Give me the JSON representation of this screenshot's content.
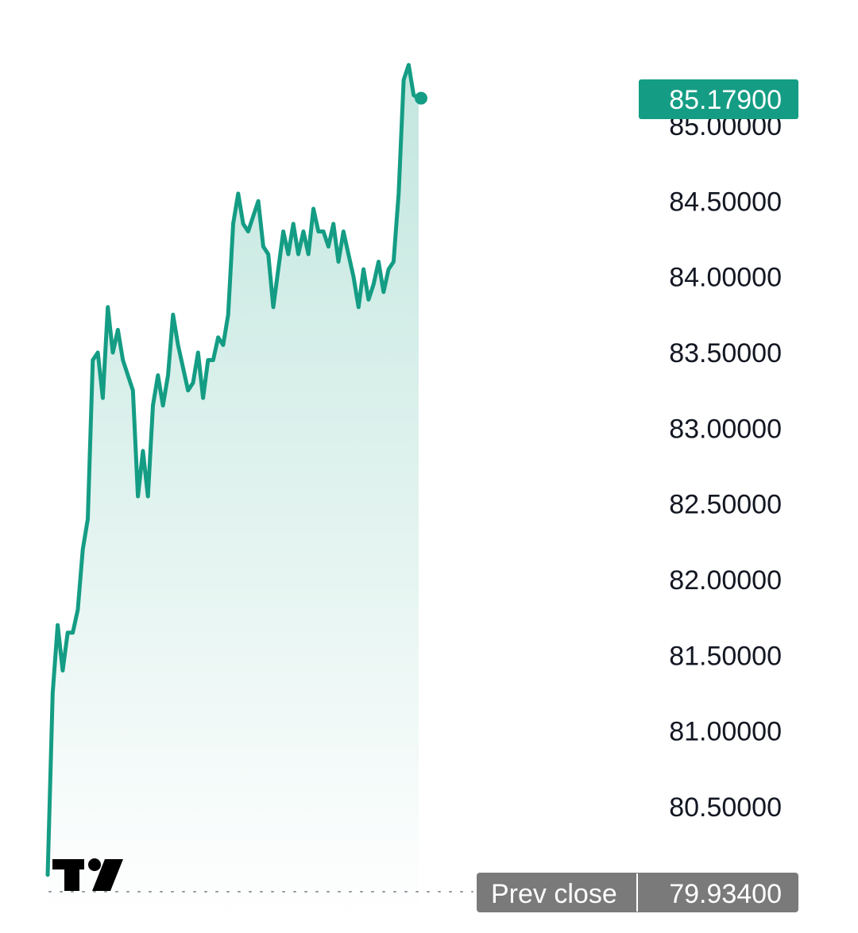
{
  "chart_data": {
    "type": "area",
    "ylim": [
      80.05,
      85.54
    ],
    "yticks": [
      "85.00000",
      "84.50000",
      "84.00000",
      "83.50000",
      "83.00000",
      "82.50000",
      "82.00000",
      "81.50000",
      "81.00000",
      "80.50000"
    ],
    "ytick_values": [
      85.0,
      84.5,
      84.0,
      83.5,
      83.0,
      82.5,
      82.0,
      81.5,
      81.0,
      80.5
    ],
    "series": [
      {
        "values": [
          80.05,
          81.25,
          81.7,
          81.4,
          81.65,
          81.65,
          81.8,
          82.2,
          82.4,
          83.45,
          83.5,
          83.2,
          83.8,
          83.5,
          83.65,
          83.45,
          83.35,
          83.25,
          82.55,
          82.85,
          82.55,
          83.15,
          83.35,
          83.15,
          83.35,
          83.75,
          83.55,
          83.4,
          83.25,
          83.3,
          83.5,
          83.2,
          83.45,
          83.45,
          83.6,
          83.55,
          83.75,
          84.35,
          84.55,
          84.35,
          84.3,
          84.4,
          84.5,
          84.2,
          84.15,
          83.8,
          84.05,
          84.3,
          84.15,
          84.35,
          84.15,
          84.3,
          84.15,
          84.45,
          84.3,
          84.3,
          84.2,
          84.35,
          84.1,
          84.3,
          84.15,
          84.0,
          83.8,
          84.05,
          83.85,
          83.95,
          84.1,
          83.9,
          84.05,
          84.1,
          84.55,
          85.3,
          85.4,
          85.2,
          85.18
        ],
        "color": "#149d84"
      }
    ],
    "last_value": "85.17900",
    "prev_close": {
      "label": "Prev close",
      "value": "79.93400",
      "numeric": 79.934
    },
    "grid": false,
    "colors": {
      "line": "#149d84",
      "fill_top": "#c2e6de",
      "fill_bottom": "#ffffff",
      "badge": "#149d84",
      "prev_close_badge": "#7a7a7a",
      "tick_text": "#131722",
      "dotted_line": "#9598a1"
    }
  },
  "logo": {
    "name": "tradingview-logo-icon"
  }
}
